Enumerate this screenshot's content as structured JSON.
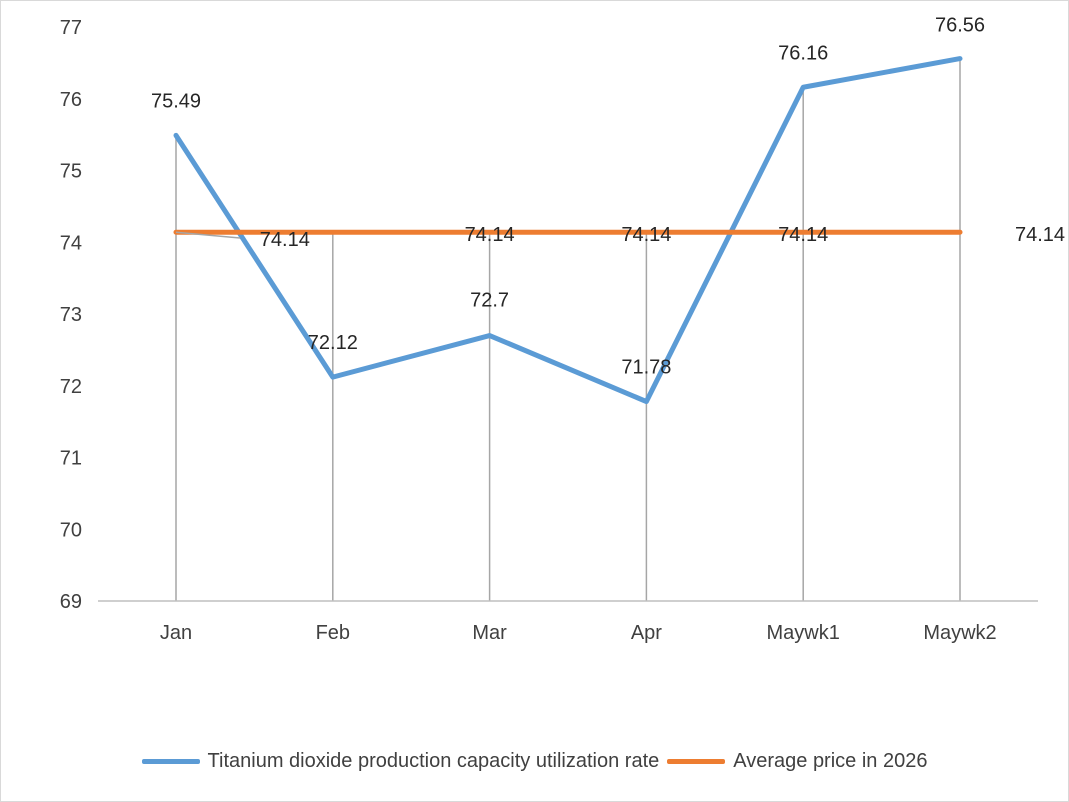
{
  "chart_data": {
    "type": "line",
    "categories": [
      "Jan",
      "Feb",
      "Mar",
      "Apr",
      "Maywk1",
      "Maywk2"
    ],
    "series": [
      {
        "name": "Titanium dioxide production capacity utilization rate",
        "values": [
          75.49,
          72.12,
          72.7,
          71.78,
          76.16,
          76.56
        ],
        "color": "#5b9bd5",
        "labels": [
          "75.49",
          "72.12",
          "72.7",
          "71.78",
          "76.16",
          "76.56"
        ]
      },
      {
        "name": "Average price in 2026",
        "values": [
          74.14,
          74.14,
          74.14,
          74.14,
          74.14,
          74.14
        ],
        "color": "#ed7d31",
        "labels": [
          "",
          "74.14",
          "74.14",
          "74.14",
          "74.14",
          "74.14"
        ]
      }
    ],
    "ylim": [
      69,
      77
    ],
    "yticks": [
      "69",
      "70",
      "71",
      "72",
      "73",
      "74",
      "75",
      "76",
      "77"
    ],
    "vertical_drop_lines": true,
    "grid": false,
    "legend_position": "bottom",
    "title": "",
    "xlabel": "",
    "ylabel": ""
  }
}
